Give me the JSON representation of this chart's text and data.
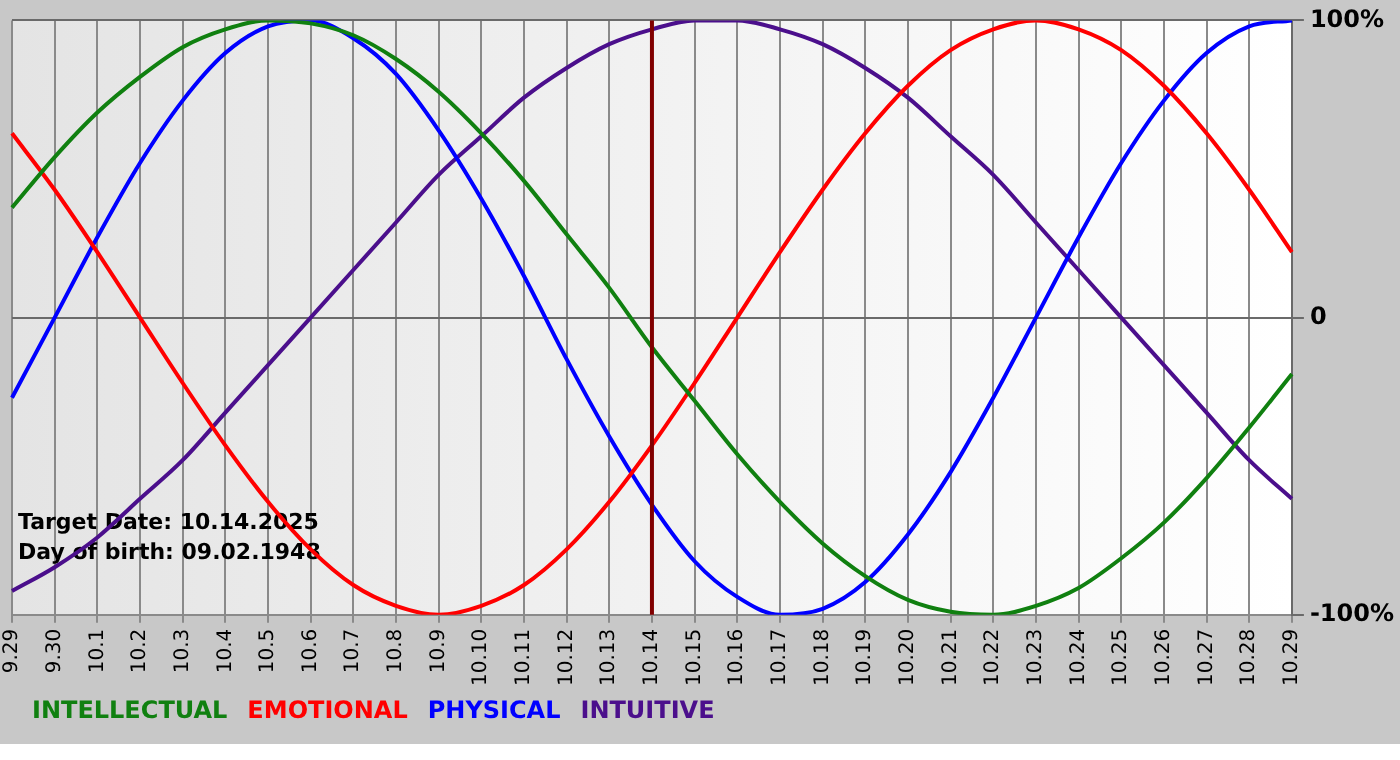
{
  "chart_data": {
    "type": "line",
    "categories": [
      "9.29",
      "9.30",
      "10.1",
      "10.2",
      "10.3",
      "10.4",
      "10.5",
      "10.6",
      "10.7",
      "10.8",
      "10.9",
      "10.10",
      "10.11",
      "10.12",
      "10.13",
      "10.14",
      "10.15",
      "10.16",
      "10.17",
      "10.18",
      "10.19",
      "10.20",
      "10.21",
      "10.22",
      "10.23",
      "10.24",
      "10.25",
      "10.26",
      "10.27",
      "10.28",
      "10.29"
    ],
    "series": [
      {
        "name": "INTELLECTUAL",
        "color": "#108010",
        "values": [
          37,
          54,
          69,
          81,
          91,
          97,
          100,
          99,
          95,
          87,
          76,
          62,
          46,
          28,
          10,
          -10,
          -28,
          -46,
          -62,
          -76,
          -87,
          -95,
          -99,
          -100,
          -97,
          -91,
          -81,
          -69,
          -54,
          -37,
          -19
        ]
      },
      {
        "name": "EMOTIONAL",
        "color": "#ff0000",
        "values": [
          62,
          43,
          22,
          0,
          -22,
          -43,
          -62,
          -78,
          -90,
          -97,
          -100,
          -97,
          -90,
          -78,
          -62,
          -43,
          -22,
          0,
          22,
          43,
          62,
          78,
          90,
          97,
          100,
          97,
          90,
          78,
          62,
          43,
          22
        ]
      },
      {
        "name": "PHYSICAL",
        "color": "#0000ff",
        "values": [
          -27,
          0,
          27,
          52,
          73,
          89,
          98,
          100,
          94,
          82,
          63,
          40,
          14,
          -14,
          -40,
          -63,
          -82,
          -94,
          -100,
          -98,
          -89,
          -73,
          -52,
          -27,
          0,
          27,
          52,
          73,
          89,
          98,
          100
        ]
      },
      {
        "name": "INTUITIVE",
        "color": "#4b0f8c",
        "values": [
          -92,
          -84,
          -74,
          -61,
          -48,
          -32,
          -16,
          0,
          16,
          32,
          48,
          61,
          74,
          84,
          92,
          97,
          100,
          100,
          97,
          92,
          84,
          74,
          61,
          48,
          32,
          16,
          0,
          -16,
          -32,
          -48,
          -61
        ]
      }
    ],
    "ylim": [
      -100,
      100
    ],
    "yticks": [
      {
        "value": 100,
        "label": "100%"
      },
      0,
      {
        "value": -100,
        "label": "-100%"
      }
    ],
    "ref_lines": [
      {
        "axis": "x",
        "value": "10.14",
        "color": "#800000"
      }
    ],
    "annotations": [
      "Target Date: 10.14.2025",
      "Day of birth: 09.02.1948"
    ],
    "grid": true,
    "legend": "bottom",
    "marker": "none",
    "line_style": "solid"
  }
}
